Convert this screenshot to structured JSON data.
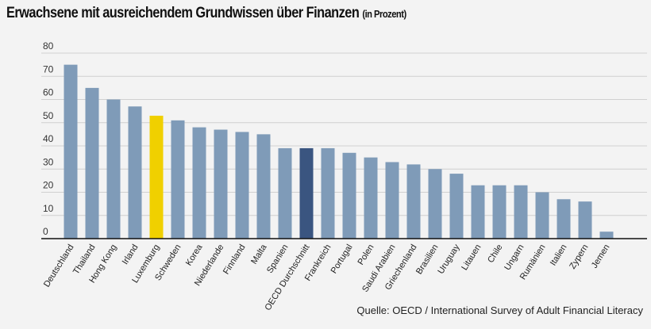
{
  "chart_data": {
    "type": "bar",
    "title": "Erwachsene mit ausreichendem Grundwissen über Finanzen",
    "subtitle": "(in Prozent)",
    "source": "Quelle: OECD / International Survey of Adult Financial Literacy",
    "categories": [
      "Deutschland",
      "Thailand",
      "Hong Kong",
      "Irland",
      "Luxemburg",
      "Schweden",
      "Korea",
      "Niederlande",
      "Finnland",
      "Malta",
      "Spanien",
      "OECD Durchschnitt",
      "Frankreich",
      "Portugal",
      "Polen",
      "Saudi Arabien",
      "Griechenland",
      "Brasilien",
      "Uruguay",
      "Litauen",
      "Chile",
      "Ungarn",
      "Rumänien",
      "Italien",
      "Zypern",
      "Jemen"
    ],
    "values": [
      75,
      65,
      60,
      57,
      53,
      51,
      48,
      47,
      46,
      45,
      39,
      39,
      39,
      37,
      35,
      33,
      32,
      30,
      28,
      23,
      23,
      23,
      20,
      17,
      16,
      3
    ],
    "highlight": {
      "Luxemburg": "#f0d000",
      "OECD Durchschnitt": "#3a5580"
    },
    "bar_color": "#7f9bb8",
    "yticks": [
      0,
      10,
      20,
      30,
      40,
      50,
      60,
      70,
      80
    ],
    "ylim": [
      0,
      80
    ],
    "grid": true,
    "xlabel": "",
    "ylabel": ""
  }
}
